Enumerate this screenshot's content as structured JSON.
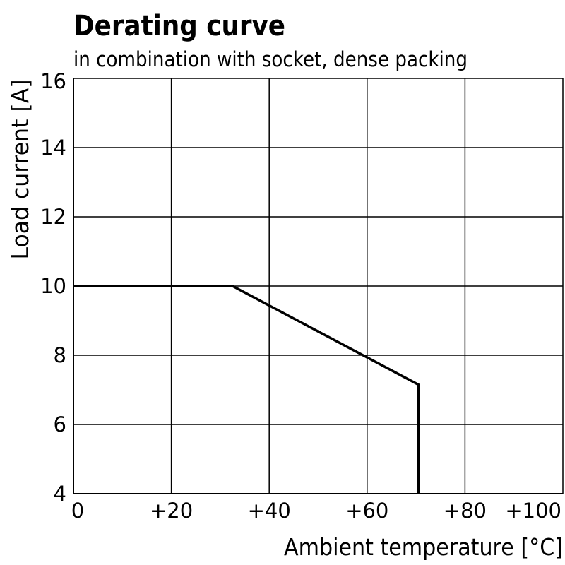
{
  "chart_data": {
    "type": "line",
    "title": "Derating curve",
    "subtitle": "in combination with socket, dense packing",
    "xlabel": "Ambient temperature [°C]",
    "ylabel": "Load current [A]",
    "xlim": [
      0,
      100
    ],
    "ylim": [
      4,
      16
    ],
    "x_ticks": [
      0,
      20,
      40,
      60,
      80,
      100
    ],
    "x_tick_labels": [
      "0",
      "+20",
      "+40",
      "+60",
      "+80",
      "+100"
    ],
    "y_ticks": [
      4,
      6,
      8,
      10,
      12,
      14,
      16
    ],
    "y_tick_labels": [
      "4",
      "6",
      "8",
      "10",
      "12",
      "14",
      "16"
    ],
    "grid": true,
    "series": [
      {
        "color": "#000000",
        "points": [
          [
            0,
            10
          ],
          [
            32.5,
            10
          ],
          [
            70.5,
            7.15
          ],
          [
            70.5,
            4
          ]
        ]
      }
    ]
  }
}
